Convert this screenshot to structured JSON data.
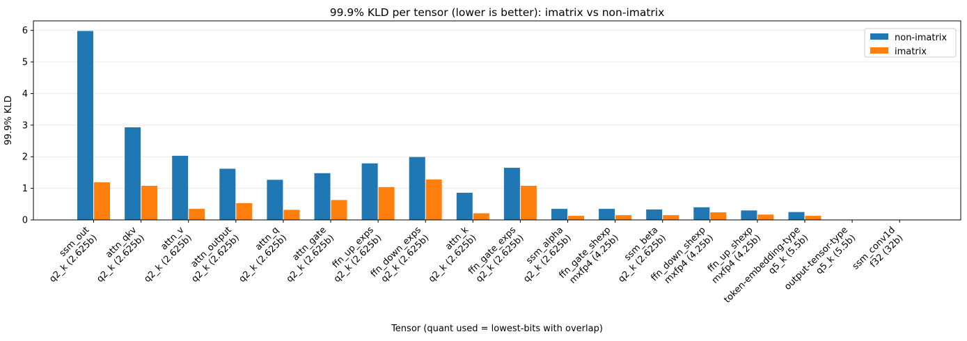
{
  "chart_data": {
    "type": "bar",
    "title": "99.9% KLD per tensor (lower is better): imatrix vs non-imatrix",
    "xlabel": "Tensor (quant used = lowest-bits with overlap)",
    "ylabel": "99.9% KLD",
    "ylim": [
      0,
      6.3
    ],
    "yticks": [
      0,
      1,
      2,
      3,
      4,
      5,
      6
    ],
    "grid": true,
    "legend_position": "upper right",
    "categories": [
      {
        "tensor": "ssm_out",
        "quant": "q2_k (2.625b)"
      },
      {
        "tensor": "attn_qkv",
        "quant": "q2_k (2.625b)"
      },
      {
        "tensor": "attn_v",
        "quant": "q2_k (2.625b)"
      },
      {
        "tensor": "attn_output",
        "quant": "q2_k (2.625b)"
      },
      {
        "tensor": "attn_q",
        "quant": "q2_k (2.625b)"
      },
      {
        "tensor": "attn_gate",
        "quant": "q2_k (2.625b)"
      },
      {
        "tensor": "ffn_up_exps",
        "quant": "q2_k (2.625b)"
      },
      {
        "tensor": "ffn_down_exps",
        "quant": "q2_k (2.625b)"
      },
      {
        "tensor": "attn_k",
        "quant": "q2_k (2.625b)"
      },
      {
        "tensor": "ffn_gate_exps",
        "quant": "q2_k (2.625b)"
      },
      {
        "tensor": "ssm_alpha",
        "quant": "q2_k (2.625b)"
      },
      {
        "tensor": "ffn_gate_shexp",
        "quant": "mxfp4 (4.25b)"
      },
      {
        "tensor": "ssm_beta",
        "quant": "q2_k (2.625b)"
      },
      {
        "tensor": "ffn_down_shexp",
        "quant": "mxfp4 (4.25b)"
      },
      {
        "tensor": "ffn_up_shexp",
        "quant": "mxfp4 (4.25b)"
      },
      {
        "tensor": "token-embedding-type",
        "quant": "q5_k (5.5b)"
      },
      {
        "tensor": "output-tensor-type",
        "quant": "q5_k (5.5b)"
      },
      {
        "tensor": "ssm_conv1d",
        "quant": "f32 (32b)"
      }
    ],
    "series": [
      {
        "name": "non-imatrix",
        "color": "#1f77b4",
        "values": [
          5.98,
          2.93,
          2.03,
          1.62,
          1.27,
          1.48,
          1.79,
          1.99,
          0.86,
          1.65,
          0.35,
          0.35,
          0.33,
          0.4,
          0.3,
          0.25,
          0.0,
          0.0
        ]
      },
      {
        "name": "imatrix",
        "color": "#ff7f0e",
        "values": [
          1.19,
          1.08,
          0.35,
          0.53,
          0.32,
          0.63,
          1.04,
          1.28,
          0.21,
          1.08,
          0.13,
          0.15,
          0.15,
          0.24,
          0.17,
          0.13,
          0.0,
          0.0
        ]
      }
    ]
  },
  "colors": {
    "grid": "#e8e8e8",
    "axis": "#000000",
    "background": "#ffffff"
  }
}
